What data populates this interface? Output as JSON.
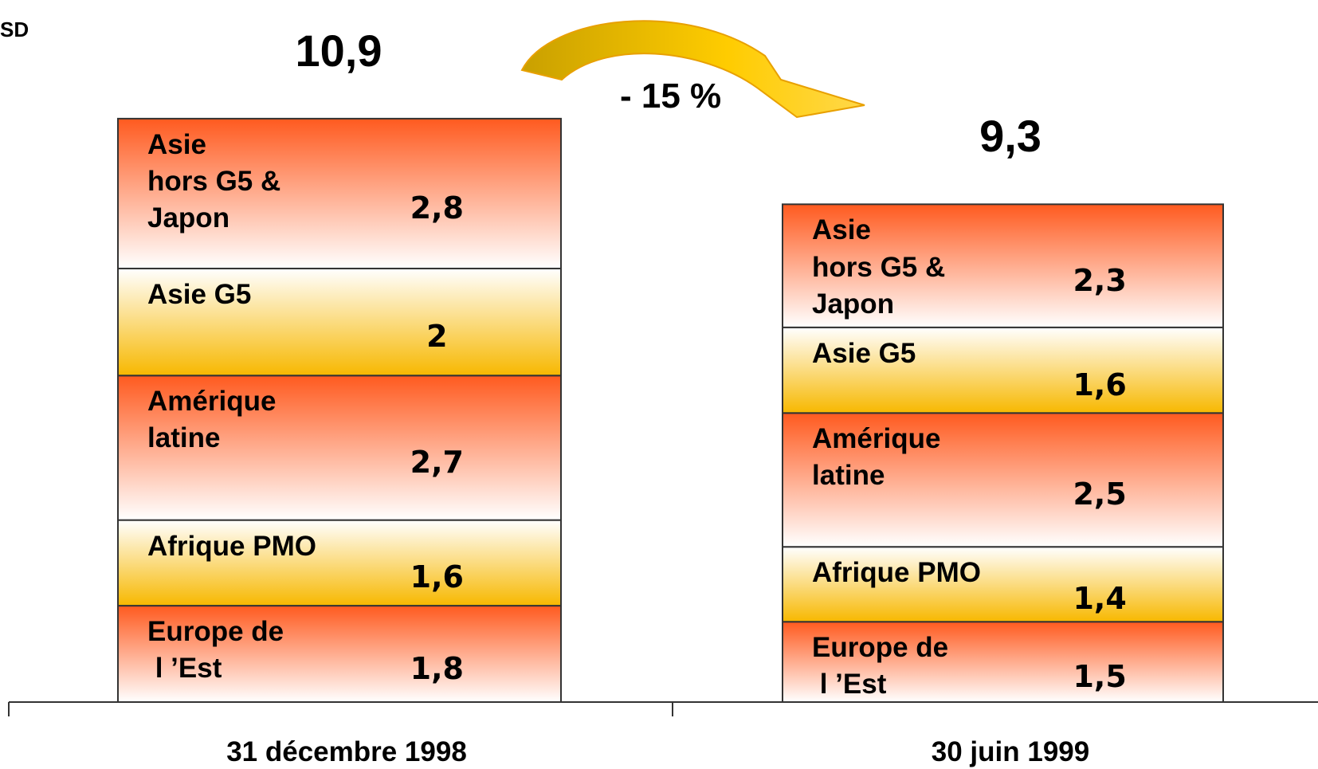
{
  "chart_data": {
    "type": "stacked-bar",
    "unit_label": "SD",
    "annotation": "- 15 %",
    "categories": [
      "31 décembre 1998",
      "30 juin 1999"
    ],
    "totals": [
      10.9,
      9.3
    ],
    "total_labels": [
      "10,9",
      "9,3"
    ],
    "ylim": [
      0,
      12
    ],
    "series": [
      {
        "name": "Europe de\n l ’Est",
        "gradient": [
          "#ff5a1f",
          "#ffffff"
        ],
        "values": [
          1.8,
          1.5
        ],
        "value_labels": [
          "1,8",
          "1,5"
        ]
      },
      {
        "name": "Afrique PMO",
        "gradient": [
          "#ffffff",
          "#f7b800"
        ],
        "values": [
          1.6,
          1.4
        ],
        "value_labels": [
          "1,6",
          "1,4"
        ]
      },
      {
        "name": "Amérique\nlatine",
        "gradient": [
          "#ff5a1f",
          "#ffffff"
        ],
        "values": [
          2.7,
          2.5
        ],
        "value_labels": [
          "2,7",
          "2,5"
        ]
      },
      {
        "name": "Asie G5",
        "gradient": [
          "#ffffff",
          "#f7b800"
        ],
        "values": [
          2,
          1.6
        ],
        "value_labels": [
          "2",
          "1,6"
        ]
      },
      {
        "name": "Asie\nhors G5 &\nJapon",
        "gradient": [
          "#ff5a1f",
          "#ffffff"
        ],
        "values": [
          2.8,
          2.3
        ],
        "value_labels": [
          "2,8",
          "2,3"
        ]
      }
    ]
  }
}
